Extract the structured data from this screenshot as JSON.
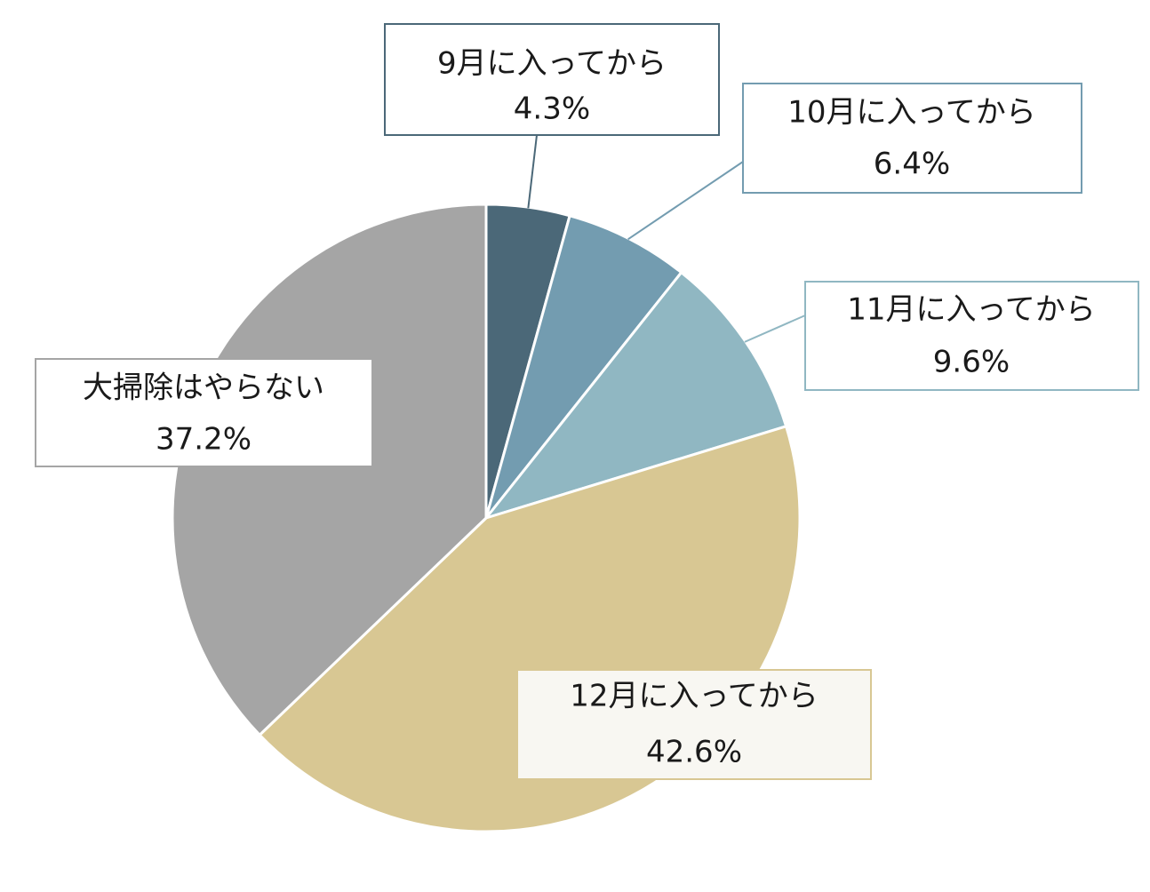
{
  "chart_data": {
    "type": "pie",
    "slices": [
      {
        "label": "9月に入ってから",
        "value": 4.3,
        "value_text": "4.3%",
        "color": "#4b6878"
      },
      {
        "label": "10月に入ってから",
        "value": 6.4,
        "value_text": "6.4%",
        "color": "#739cb0"
      },
      {
        "label": "11月に入ってから",
        "value": 9.6,
        "value_text": "9.6%",
        "color": "#90b7c2"
      },
      {
        "label": "12月に入ってから",
        "value": 42.6,
        "value_text": "42.6%",
        "color": "#d8c793"
      },
      {
        "label": "大掃除はやらない",
        "value": 37.2,
        "value_text": "37.2%",
        "color": "#a5a5a5"
      }
    ],
    "start_angle": "12 o'clock",
    "direction": "clockwise",
    "legend": "none"
  }
}
